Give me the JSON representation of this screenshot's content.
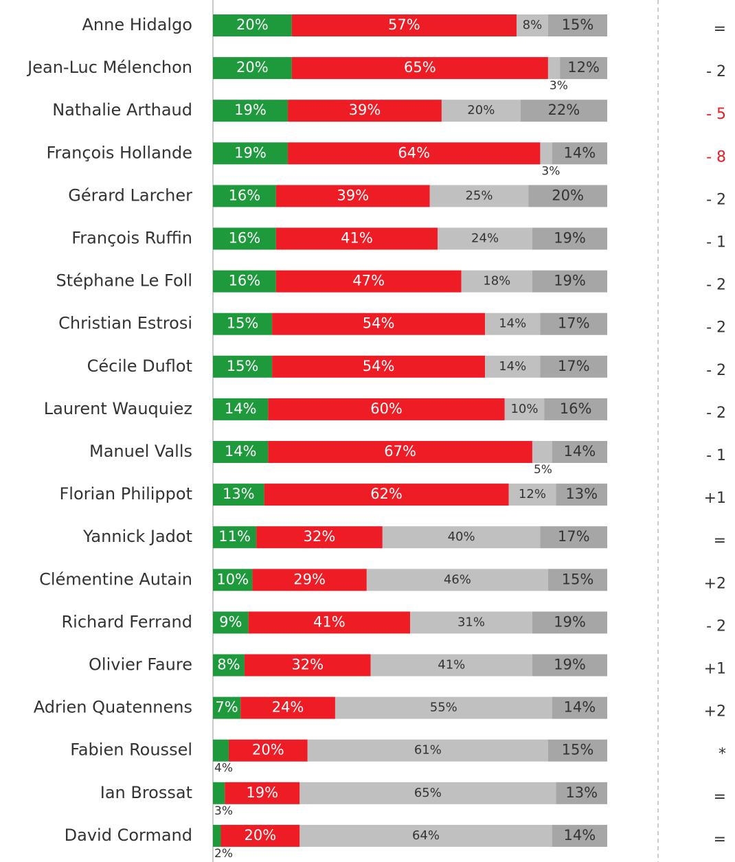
{
  "chart_data": {
    "type": "stacked-bar-horizontal",
    "categories": [
      "Anne Hidalgo",
      "Jean-Luc Mélenchon",
      "Nathalie Arthaud",
      "François Hollande",
      "Gérard Larcher",
      "François Ruffin",
      "Stéphane Le Foll",
      "Christian Estrosi",
      "Cécile Duflot",
      "Laurent Wauquiez",
      "Manuel Valls",
      "Florian Philippot",
      "Yannick Jadot",
      "Clémentine Autain",
      "Richard Ferrand",
      "Olivier Faure",
      "Adrien Quatennens",
      "Fabien Roussel",
      "Ian Brossat",
      "David Cormand"
    ],
    "series": [
      {
        "color": "#1e9a3c",
        "values": [
          20,
          20,
          19,
          19,
          16,
          16,
          16,
          15,
          15,
          14,
          14,
          13,
          11,
          10,
          9,
          8,
          7,
          4,
          3,
          2
        ],
        "value_labels": [
          "20%",
          "20%",
          "19%",
          "19%",
          "16%",
          "16%",
          "16%",
          "15%",
          "15%",
          "14%",
          "14%",
          "13%",
          "11%",
          "10%",
          "9%",
          "8%",
          "7%",
          "4%",
          "3%",
          "2%"
        ]
      },
      {
        "color": "#ee1c25",
        "values": [
          57,
          65,
          39,
          64,
          39,
          41,
          47,
          54,
          54,
          60,
          67,
          62,
          32,
          29,
          41,
          32,
          24,
          20,
          19,
          20
        ],
        "value_labels": [
          "57%",
          "65%",
          "39%",
          "64%",
          "39%",
          "41%",
          "47%",
          "54%",
          "54%",
          "60%",
          "67%",
          "62%",
          "32%",
          "29%",
          "41%",
          "32%",
          "24%",
          "20%",
          "19%",
          "20%"
        ]
      },
      {
        "color": "#c0c0c0",
        "values": [
          8,
          3,
          20,
          3,
          25,
          24,
          18,
          14,
          14,
          10,
          5,
          12,
          40,
          46,
          31,
          41,
          55,
          61,
          65,
          64
        ],
        "value_labels": [
          "8%",
          "3%",
          "20%",
          "3%",
          "25%",
          "24%",
          "18%",
          "14%",
          "14%",
          "10%",
          "5%",
          "12%",
          "40%",
          "46%",
          "31%",
          "41%",
          "55%",
          "61%",
          "65%",
          "64%"
        ]
      },
      {
        "color": "#a6a6a6",
        "values": [
          15,
          12,
          22,
          14,
          20,
          19,
          19,
          17,
          17,
          16,
          14,
          13,
          17,
          15,
          19,
          19,
          14,
          15,
          13,
          14
        ],
        "value_labels": [
          "15%",
          "12%",
          "22%",
          "14%",
          "20%",
          "19%",
          "19%",
          "17%",
          "17%",
          "16%",
          "14%",
          "13%",
          "17%",
          "15%",
          "19%",
          "19%",
          "14%",
          "15%",
          "13%",
          "14%"
        ]
      }
    ],
    "xlim": [
      0,
      100
    ],
    "changes": [
      "=",
      "- 2",
      "- 5",
      "- 8",
      "- 2",
      "- 1",
      "- 2",
      "- 2",
      "- 2",
      "- 2",
      "- 1",
      "+1",
      "=",
      "+2",
      "- 2",
      "+1",
      "+2",
      "*",
      "=",
      "="
    ],
    "change_colors": [
      "#333333",
      "#333333",
      "#ee1c25",
      "#ee1c25",
      "#333333",
      "#333333",
      "#333333",
      "#333333",
      "#333333",
      "#333333",
      "#333333",
      "#333333",
      "#333333",
      "#333333",
      "#333333",
      "#333333",
      "#333333",
      "#333333",
      "#333333",
      "#333333"
    ]
  }
}
